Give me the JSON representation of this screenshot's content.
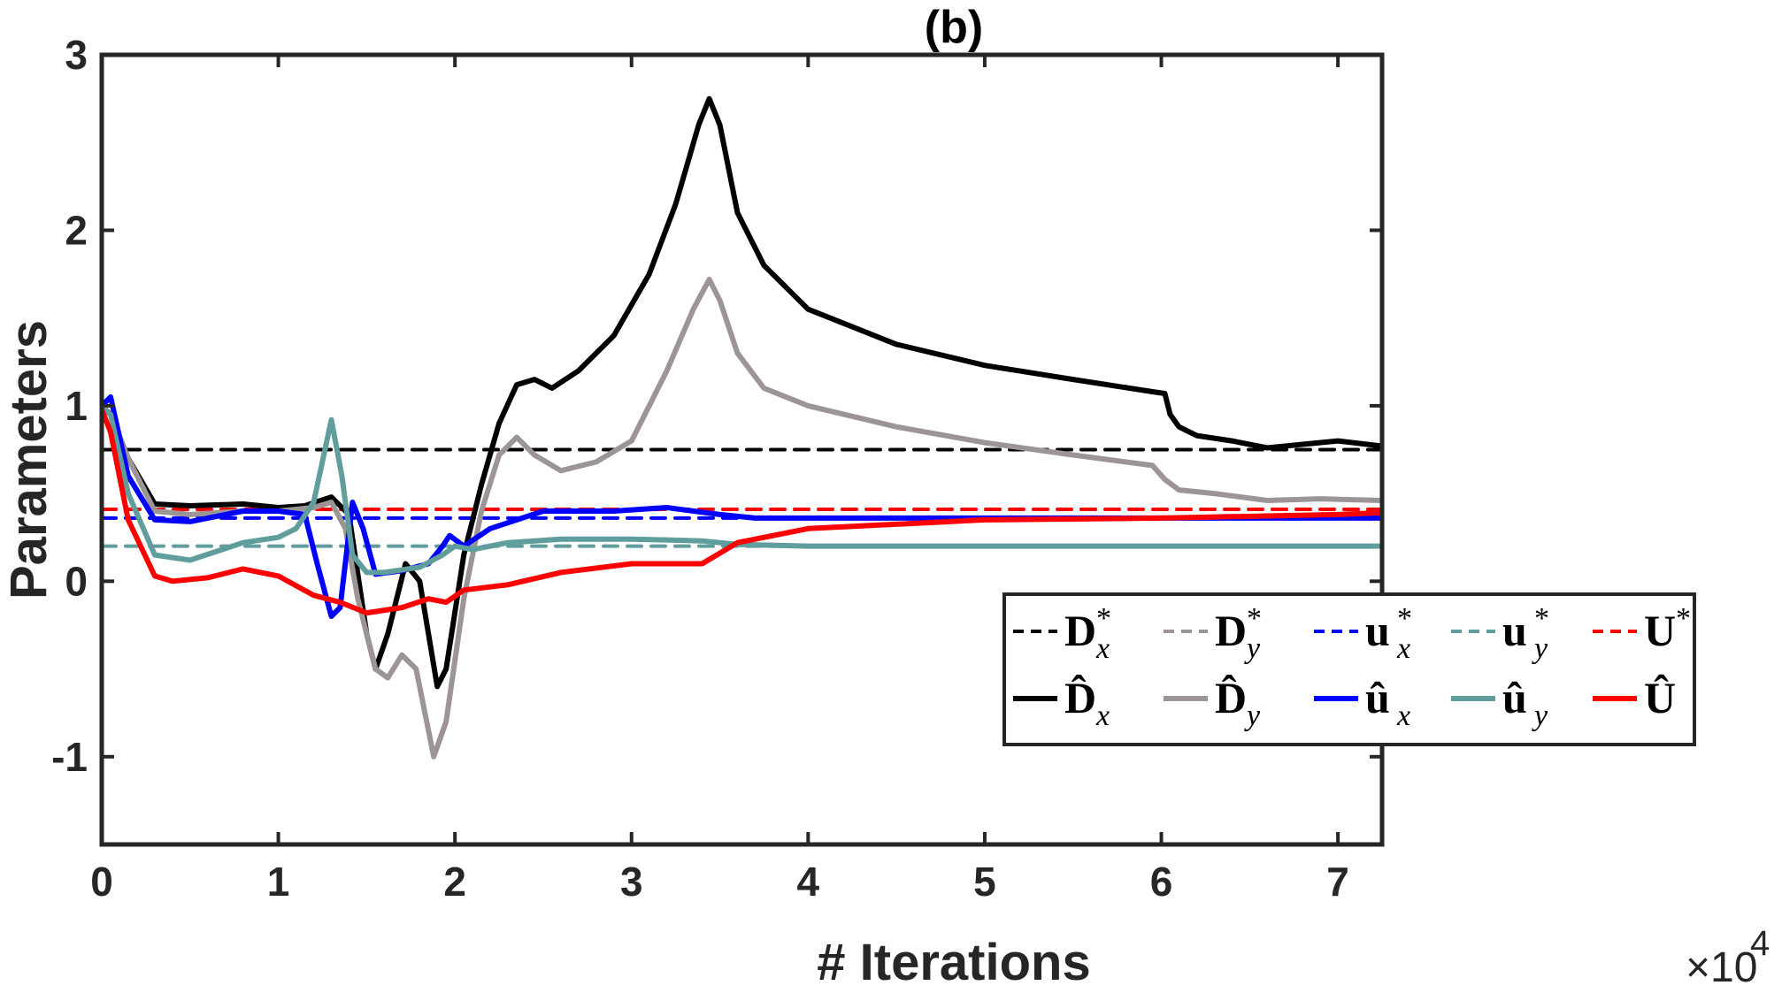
{
  "chart_data": {
    "type": "line",
    "title": "(b)",
    "xlabel": "# Iterations",
    "ylabel": "Parameters",
    "x_multiplier_label": "×10",
    "x_multiplier_exponent": "4",
    "xlim": [
      0,
      7.25
    ],
    "ylim": [
      -1.5,
      3
    ],
    "xticks": [
      0,
      1,
      2,
      3,
      4,
      5,
      6,
      7
    ],
    "xtick_labels": [
      "0",
      "1",
      "2",
      "3",
      "4",
      "5",
      "6",
      "7"
    ],
    "yticks": [
      -1,
      0,
      1,
      2,
      3
    ],
    "ytick_labels": [
      "-1",
      "0",
      "1",
      "2",
      "3"
    ],
    "x_units": "×10^4 iterations",
    "series": [
      {
        "name": "D*_x",
        "legend_main": "D",
        "legend_sub": "x",
        "legend_sup": "*",
        "style": "dashed",
        "color": "#000000",
        "x": [
          0,
          7.25
        ],
        "y": [
          0.75,
          0.75
        ]
      },
      {
        "name": "D*_y",
        "legend_main": "D",
        "legend_sub": "y",
        "legend_sup": "*",
        "style": "dashed",
        "color": "#9c9495",
        "x": [
          0,
          7.25
        ],
        "y": [
          0.41,
          0.41
        ]
      },
      {
        "name": "u*_x",
        "legend_main": "u",
        "legend_sub": "x",
        "legend_sup": "*",
        "style": "dashed",
        "color": "#0000ff",
        "x": [
          0,
          7.25
        ],
        "y": [
          0.36,
          0.36
        ]
      },
      {
        "name": "u*_y",
        "legend_main": "u",
        "legend_sub": "y",
        "legend_sup": "*",
        "style": "dashed",
        "color": "#5f9e9c",
        "x": [
          0,
          7.25
        ],
        "y": [
          0.2,
          0.2
        ]
      },
      {
        "name": "U*",
        "legend_main": "U",
        "legend_sub": "",
        "legend_sup": "*",
        "style": "dashed",
        "color": "#ff0000",
        "x": [
          0,
          7.25
        ],
        "y": [
          0.41,
          0.41
        ]
      },
      {
        "name": "D̂_x",
        "legend_main": "D̂",
        "legend_sub": "x",
        "legend_sup": "",
        "style": "solid",
        "color": "#000000",
        "x": [
          0,
          0.05,
          0.15,
          0.3,
          0.5,
          0.8,
          1.0,
          1.15,
          1.3,
          1.4,
          1.5,
          1.55,
          1.62,
          1.72,
          1.8,
          1.9,
          1.95,
          2.05,
          2.15,
          2.25,
          2.35,
          2.45,
          2.55,
          2.7,
          2.9,
          3.1,
          3.25,
          3.38,
          3.44,
          3.5,
          3.6,
          3.75,
          4.0,
          4.5,
          5.0,
          5.5,
          5.95,
          6.02,
          6.05,
          6.1,
          6.2,
          6.4,
          6.6,
          6.8,
          7.0,
          7.25
        ],
        "y": [
          1.0,
          0.95,
          0.7,
          0.44,
          0.43,
          0.44,
          0.42,
          0.43,
          0.48,
          0.38,
          -0.3,
          -0.5,
          -0.3,
          0.1,
          0.0,
          -0.6,
          -0.5,
          0.15,
          0.55,
          0.9,
          1.12,
          1.15,
          1.1,
          1.2,
          1.4,
          1.75,
          2.15,
          2.6,
          2.75,
          2.6,
          2.1,
          1.8,
          1.55,
          1.35,
          1.23,
          1.15,
          1.08,
          1.07,
          0.95,
          0.88,
          0.83,
          0.8,
          0.76,
          0.78,
          0.8,
          0.77
        ]
      },
      {
        "name": "D̂_y",
        "legend_main": "D̂",
        "legend_sub": "y",
        "legend_sup": "",
        "style": "solid",
        "color": "#9c9495",
        "x": [
          0,
          0.05,
          0.15,
          0.3,
          0.5,
          0.8,
          1.0,
          1.2,
          1.3,
          1.38,
          1.45,
          1.55,
          1.62,
          1.7,
          1.78,
          1.88,
          1.95,
          2.05,
          2.15,
          2.25,
          2.35,
          2.45,
          2.6,
          2.8,
          3.0,
          3.2,
          3.35,
          3.44,
          3.5,
          3.6,
          3.75,
          4.0,
          4.5,
          5.0,
          5.5,
          5.95,
          6.02,
          6.1,
          6.3,
          6.6,
          6.9,
          7.25
        ],
        "y": [
          1.0,
          0.95,
          0.7,
          0.4,
          0.38,
          0.4,
          0.4,
          0.42,
          0.45,
          0.3,
          -0.1,
          -0.5,
          -0.55,
          -0.42,
          -0.5,
          -1.0,
          -0.8,
          -0.1,
          0.4,
          0.72,
          0.82,
          0.72,
          0.63,
          0.68,
          0.8,
          1.2,
          1.55,
          1.72,
          1.6,
          1.3,
          1.1,
          1.0,
          0.88,
          0.79,
          0.72,
          0.66,
          0.58,
          0.52,
          0.5,
          0.46,
          0.47,
          0.46
        ]
      },
      {
        "name": "û_x",
        "legend_main": "û",
        "legend_sub": "x",
        "legend_sup": "",
        "style": "solid",
        "color": "#0000ff",
        "x": [
          0,
          0.05,
          0.15,
          0.3,
          0.5,
          0.8,
          1.0,
          1.15,
          1.22,
          1.3,
          1.35,
          1.42,
          1.48,
          1.55,
          1.7,
          1.85,
          1.93,
          1.97,
          2.05,
          2.2,
          2.5,
          2.9,
          3.2,
          3.5,
          3.7,
          4.5,
          5.5,
          6.5,
          7.25
        ],
        "y": [
          1.0,
          1.05,
          0.6,
          0.35,
          0.34,
          0.4,
          0.4,
          0.38,
          0.1,
          -0.2,
          -0.15,
          0.45,
          0.3,
          0.04,
          0.06,
          0.1,
          0.2,
          0.26,
          0.2,
          0.3,
          0.4,
          0.4,
          0.42,
          0.38,
          0.36,
          0.36,
          0.36,
          0.36,
          0.36
        ]
      },
      {
        "name": "û_y",
        "legend_main": "û",
        "legend_sub": "y",
        "legend_sup": "",
        "style": "solid",
        "color": "#5f9e9c",
        "x": [
          0,
          0.05,
          0.15,
          0.3,
          0.5,
          0.8,
          1.0,
          1.1,
          1.2,
          1.3,
          1.36,
          1.42,
          1.5,
          1.6,
          1.8,
          1.93,
          2.0,
          2.1,
          2.3,
          2.6,
          3.0,
          3.4,
          3.6,
          4.0,
          5.0,
          6.0,
          7.0,
          7.25
        ],
        "y": [
          1.0,
          0.95,
          0.5,
          0.15,
          0.12,
          0.22,
          0.25,
          0.3,
          0.45,
          0.92,
          0.6,
          0.15,
          0.05,
          0.05,
          0.08,
          0.15,
          0.2,
          0.18,
          0.22,
          0.24,
          0.24,
          0.23,
          0.21,
          0.2,
          0.2,
          0.2,
          0.2,
          0.2
        ]
      },
      {
        "name": "Û",
        "legend_main": "Û",
        "legend_sub": "",
        "legend_sup": "",
        "style": "solid",
        "color": "#ff0000",
        "x": [
          0,
          0.05,
          0.15,
          0.3,
          0.4,
          0.6,
          0.8,
          1.0,
          1.2,
          1.35,
          1.5,
          1.7,
          1.85,
          1.95,
          2.05,
          2.3,
          2.6,
          3.0,
          3.4,
          3.6,
          4.0,
          5.0,
          6.0,
          7.0,
          7.25
        ],
        "y": [
          0.98,
          0.85,
          0.35,
          0.03,
          0.0,
          0.02,
          0.07,
          0.03,
          -0.08,
          -0.12,
          -0.18,
          -0.15,
          -0.1,
          -0.12,
          -0.05,
          -0.02,
          0.05,
          0.1,
          0.1,
          0.22,
          0.3,
          0.35,
          0.36,
          0.38,
          0.39
        ]
      }
    ],
    "legend_position": "lower-right inside axes, two rows"
  }
}
